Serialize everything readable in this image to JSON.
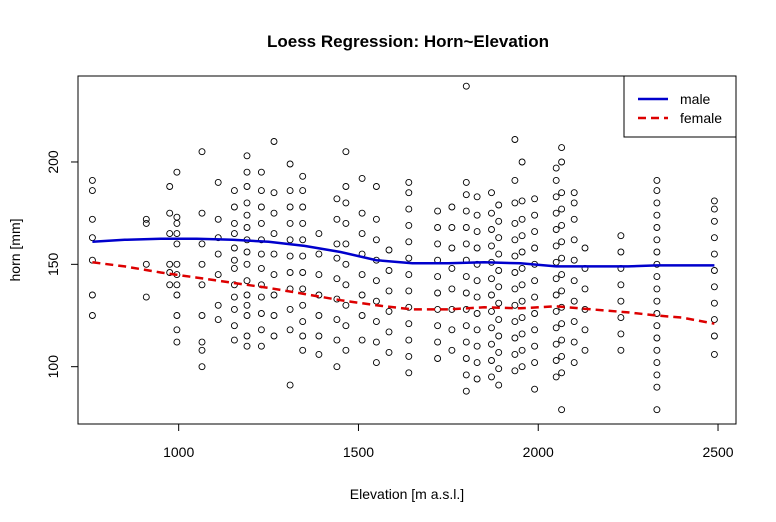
{
  "chart_data": {
    "type": "scatter",
    "title": "Loess Regression: Horn~Elevation",
    "xlabel": "Elevation [m a.s.l.]",
    "ylabel": "horn [mm]",
    "xlim": [
      720,
      2550
    ],
    "ylim": [
      72,
      242
    ],
    "x_ticks": [
      1000,
      1500,
      2000,
      2500
    ],
    "y_ticks": [
      100,
      150,
      200
    ],
    "grid": false,
    "legend_position": "top-right",
    "points": [
      {
        "x": 760,
        "elevations": [
          125,
          135,
          152,
          163,
          172,
          186,
          191
        ]
      },
      {
        "x": 910,
        "elevations": [
          134,
          150,
          170,
          172
        ]
      },
      {
        "x": 975,
        "elevations": [
          140,
          146,
          150,
          165,
          175,
          188
        ]
      },
      {
        "x": 995,
        "elevations": [
          112,
          118,
          125,
          135,
          140,
          145,
          150,
          160,
          165,
          170,
          173,
          195
        ]
      },
      {
        "x": 1065,
        "elevations": [
          100,
          108,
          112,
          125,
          140,
          150,
          160,
          175,
          205
        ]
      },
      {
        "x": 1110,
        "elevations": [
          123,
          130,
          145,
          155,
          163,
          172,
          190
        ]
      },
      {
        "x": 1155,
        "elevations": [
          113,
          120,
          128,
          134,
          140,
          148,
          152,
          158,
          165,
          170,
          178,
          186
        ]
      },
      {
        "x": 1190,
        "elevations": [
          110,
          115,
          125,
          130,
          135,
          142,
          150,
          156,
          162,
          168,
          174,
          180,
          188,
          195,
          203
        ]
      },
      {
        "x": 1230,
        "elevations": [
          110,
          118,
          126,
          134,
          140,
          148,
          155,
          162,
          170,
          178,
          186,
          195
        ]
      },
      {
        "x": 1265,
        "elevations": [
          115,
          125,
          135,
          145,
          155,
          165,
          175,
          185,
          210
        ]
      },
      {
        "x": 1310,
        "elevations": [
          91,
          118,
          128,
          138,
          146,
          154,
          162,
          170,
          178,
          186,
          199
        ]
      },
      {
        "x": 1345,
        "elevations": [
          108,
          115,
          122,
          130,
          138,
          146,
          154,
          162,
          170,
          178,
          186,
          193
        ]
      },
      {
        "x": 1390,
        "elevations": [
          106,
          115,
          125,
          135,
          145,
          155,
          165
        ]
      },
      {
        "x": 1440,
        "elevations": [
          100,
          113,
          123,
          133,
          143,
          153,
          160,
          172,
          182
        ]
      },
      {
        "x": 1465,
        "elevations": [
          108,
          120,
          130,
          140,
          150,
          160,
          170,
          180,
          188,
          205
        ]
      },
      {
        "x": 1510,
        "elevations": [
          113,
          125,
          135,
          145,
          155,
          165,
          175,
          192
        ]
      },
      {
        "x": 1550,
        "elevations": [
          102,
          112,
          122,
          132,
          142,
          152,
          162,
          172,
          188
        ]
      },
      {
        "x": 1585,
        "elevations": [
          107,
          117,
          127,
          137,
          147,
          157
        ]
      },
      {
        "x": 1640,
        "elevations": [
          97,
          105,
          113,
          121,
          129,
          137,
          145,
          153,
          161,
          169,
          177,
          185,
          190
        ]
      },
      {
        "x": 1720,
        "elevations": [
          104,
          112,
          120,
          128,
          136,
          144,
          152,
          160,
          168,
          176
        ]
      },
      {
        "x": 1760,
        "elevations": [
          108,
          118,
          128,
          138,
          148,
          158,
          168,
          178
        ]
      },
      {
        "x": 1800,
        "elevations": [
          88,
          96,
          104,
          112,
          120,
          128,
          136,
          144,
          152,
          160,
          168,
          176,
          184,
          190,
          237
        ]
      },
      {
        "x": 1830,
        "elevations": [
          94,
          102,
          110,
          118,
          126,
          134,
          142,
          150,
          158,
          166,
          174,
          183
        ]
      },
      {
        "x": 1870,
        "elevations": [
          95,
          103,
          111,
          119,
          127,
          135,
          143,
          151,
          159,
          167,
          175,
          185
        ]
      },
      {
        "x": 1890,
        "elevations": [
          91,
          99,
          107,
          115,
          123,
          131,
          139,
          147,
          155,
          163,
          171,
          179
        ]
      },
      {
        "x": 1935,
        "elevations": [
          98,
          106,
          114,
          122,
          130,
          138,
          146,
          154,
          162,
          170,
          180,
          191,
          211
        ]
      },
      {
        "x": 1955,
        "elevations": [
          100,
          108,
          116,
          124,
          132,
          140,
          148,
          156,
          164,
          172,
          181,
          200
        ]
      },
      {
        "x": 1990,
        "elevations": [
          89,
          102,
          110,
          118,
          126,
          134,
          142,
          150,
          158,
          166,
          174,
          182
        ]
      },
      {
        "x": 2050,
        "elevations": [
          95,
          103,
          111,
          119,
          127,
          135,
          143,
          151,
          159,
          167,
          175,
          183,
          191,
          197
        ]
      },
      {
        "x": 2065,
        "elevations": [
          79,
          97,
          105,
          113,
          121,
          129,
          137,
          145,
          153,
          161,
          169,
          177,
          185,
          200,
          207
        ]
      },
      {
        "x": 2100,
        "elevations": [
          102,
          112,
          122,
          132,
          142,
          152,
          162,
          172,
          180,
          185
        ]
      },
      {
        "x": 2130,
        "elevations": [
          108,
          118,
          128,
          138,
          148,
          158
        ]
      },
      {
        "x": 2230,
        "elevations": [
          108,
          116,
          124,
          132,
          140,
          148,
          156,
          164
        ]
      },
      {
        "x": 2330,
        "elevations": [
          79,
          90,
          96,
          102,
          108,
          114,
          120,
          126,
          132,
          138,
          144,
          150,
          156,
          162,
          168,
          174,
          180,
          186,
          191
        ]
      },
      {
        "x": 2490,
        "elevations": [
          106,
          115,
          123,
          131,
          139,
          147,
          155,
          163,
          171,
          177,
          181
        ]
      }
    ],
    "series": [
      {
        "name": "male",
        "color": "#0000cc",
        "dash": "solid",
        "x": [
          760,
          850,
          950,
          1050,
          1150,
          1250,
          1350,
          1450,
          1550,
          1650,
          1750,
          1850,
          1950,
          2050,
          2150,
          2250,
          2330,
          2400,
          2490
        ],
        "y": [
          161,
          162,
          162.5,
          162.5,
          162,
          161,
          159,
          156,
          152,
          150.5,
          150.5,
          151,
          150.5,
          149,
          149,
          149,
          149.5,
          149.5,
          149.5
        ]
      },
      {
        "name": "female",
        "color": "#dd0000",
        "dash": "dashed",
        "x": [
          760,
          850,
          950,
          1050,
          1150,
          1250,
          1350,
          1450,
          1550,
          1650,
          1750,
          1850,
          1950,
          2050,
          2150,
          2250,
          2330,
          2400,
          2490
        ],
        "y": [
          151,
          149,
          146,
          143.5,
          141,
          138.5,
          135.5,
          132.5,
          130,
          128,
          128,
          129,
          128.5,
          129.5,
          128,
          126.5,
          125,
          124,
          121
        ]
      }
    ]
  }
}
